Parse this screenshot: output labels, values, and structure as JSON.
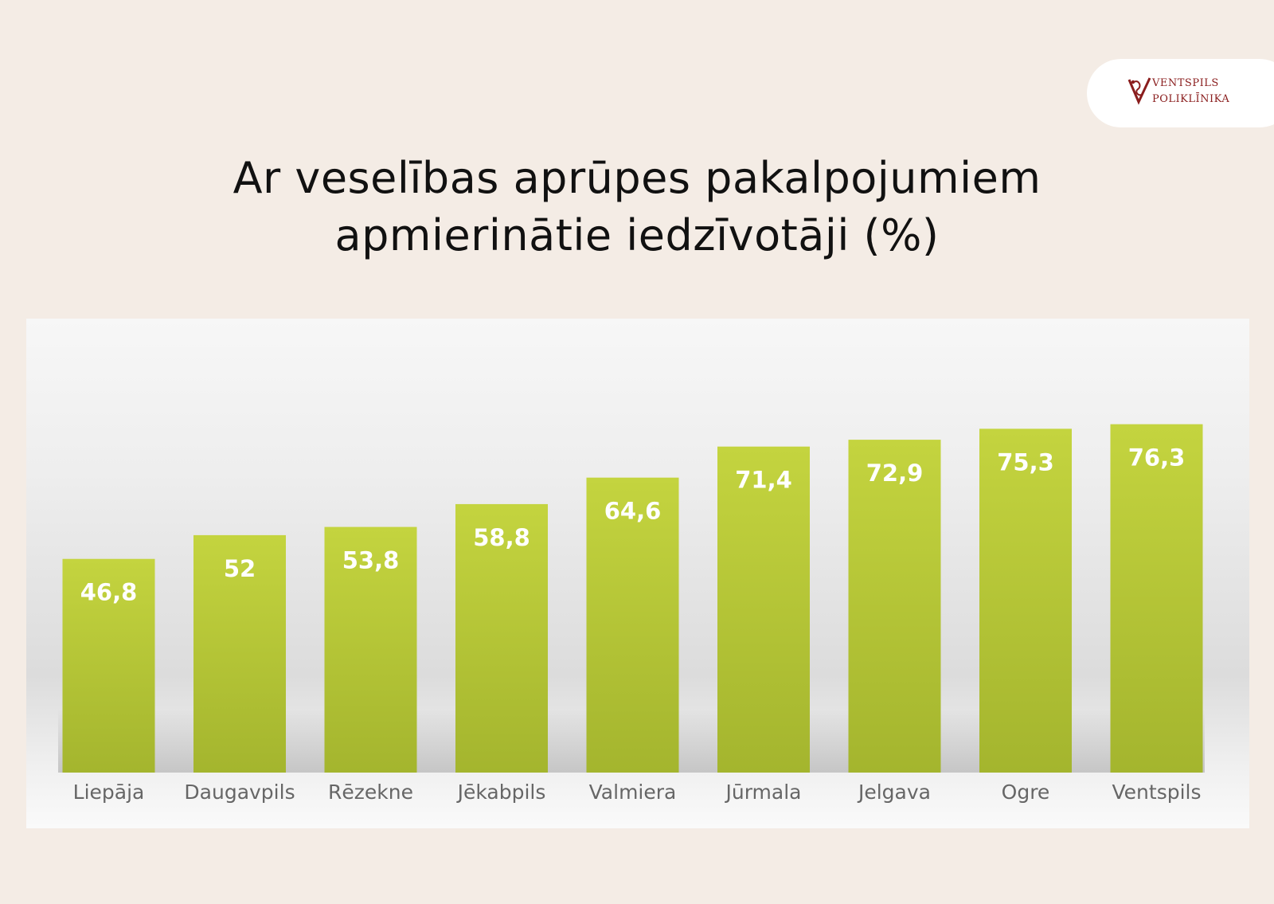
{
  "logo": {
    "line1": "VENTSPILS",
    "line2": "POLIKLĪNIKA",
    "color": "#8a1d1d",
    "icon": "caduceus-v-icon"
  },
  "title": {
    "line1": "Ar veselības aprūpes pakalpojumiem",
    "line2": "apmierinātie iedzīvotāji (%)"
  },
  "chart_data": {
    "type": "bar",
    "categories": [
      "Liepāja",
      "Daugavpils",
      "Rēzekne",
      "Jēkabpils",
      "Valmiera",
      "Jūrmala",
      "Jelgava",
      "Ogre",
      "Ventspils"
    ],
    "values": [
      46.8,
      52,
      53.8,
      58.8,
      64.6,
      71.4,
      72.9,
      75.3,
      76.3
    ],
    "value_labels": [
      "46,8",
      "52",
      "53,8",
      "58,8",
      "64,6",
      "71,4",
      "72,9",
      "75,3",
      "76,3"
    ],
    "ylim": [
      0,
      86
    ],
    "grid": false,
    "bar_color_top": "#c4d43f",
    "bar_color_bottom": "#a4b52e",
    "label_color": "#ffffff",
    "tick_color": "#666666"
  }
}
